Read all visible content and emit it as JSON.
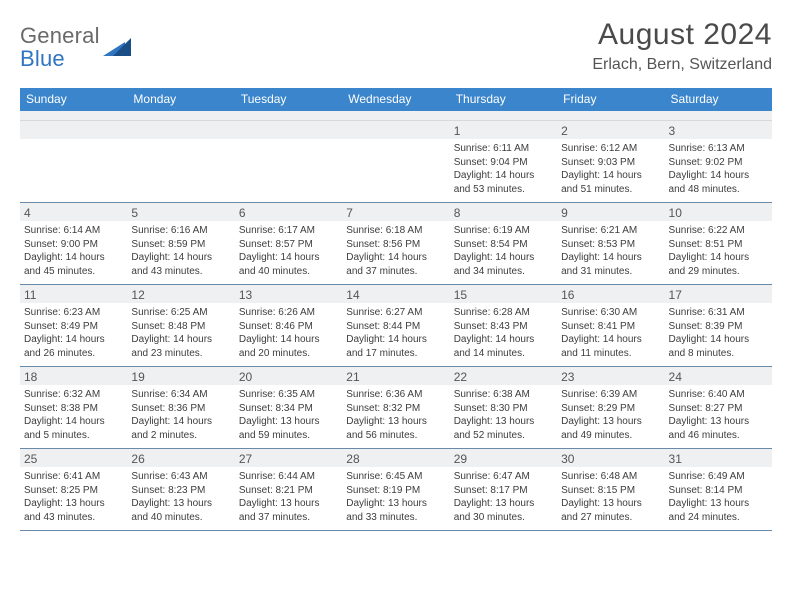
{
  "logo": {
    "part1": "General",
    "part2": "Blue"
  },
  "title": "August 2024",
  "location": "Erlach, Bern, Switzerland",
  "weekdays": [
    "Sunday",
    "Monday",
    "Tuesday",
    "Wednesday",
    "Thursday",
    "Friday",
    "Saturday"
  ],
  "colors": {
    "header_bg": "#3a85cc",
    "header_text": "#ffffff",
    "band_bg": "#eef0f1",
    "rule": "#6a8aaa",
    "body_text": "#3d3d3d",
    "title_text": "#4a4a4a",
    "logo_gray": "#6a6a6a",
    "logo_blue": "#2f75c1"
  },
  "typography": {
    "title_fontsize": 30,
    "location_fontsize": 16,
    "weekday_fontsize": 12,
    "daynum_fontsize": 12,
    "body_fontsize": 10
  },
  "weeks": [
    [
      {
        "num": "",
        "sunrise": "",
        "sunset": "",
        "daylight1": "",
        "daylight2": ""
      },
      {
        "num": "",
        "sunrise": "",
        "sunset": "",
        "daylight1": "",
        "daylight2": ""
      },
      {
        "num": "",
        "sunrise": "",
        "sunset": "",
        "daylight1": "",
        "daylight2": ""
      },
      {
        "num": "",
        "sunrise": "",
        "sunset": "",
        "daylight1": "",
        "daylight2": ""
      },
      {
        "num": "1",
        "sunrise": "Sunrise: 6:11 AM",
        "sunset": "Sunset: 9:04 PM",
        "daylight1": "Daylight: 14 hours",
        "daylight2": "and 53 minutes."
      },
      {
        "num": "2",
        "sunrise": "Sunrise: 6:12 AM",
        "sunset": "Sunset: 9:03 PM",
        "daylight1": "Daylight: 14 hours",
        "daylight2": "and 51 minutes."
      },
      {
        "num": "3",
        "sunrise": "Sunrise: 6:13 AM",
        "sunset": "Sunset: 9:02 PM",
        "daylight1": "Daylight: 14 hours",
        "daylight2": "and 48 minutes."
      }
    ],
    [
      {
        "num": "4",
        "sunrise": "Sunrise: 6:14 AM",
        "sunset": "Sunset: 9:00 PM",
        "daylight1": "Daylight: 14 hours",
        "daylight2": "and 45 minutes."
      },
      {
        "num": "5",
        "sunrise": "Sunrise: 6:16 AM",
        "sunset": "Sunset: 8:59 PM",
        "daylight1": "Daylight: 14 hours",
        "daylight2": "and 43 minutes."
      },
      {
        "num": "6",
        "sunrise": "Sunrise: 6:17 AM",
        "sunset": "Sunset: 8:57 PM",
        "daylight1": "Daylight: 14 hours",
        "daylight2": "and 40 minutes."
      },
      {
        "num": "7",
        "sunrise": "Sunrise: 6:18 AM",
        "sunset": "Sunset: 8:56 PM",
        "daylight1": "Daylight: 14 hours",
        "daylight2": "and 37 minutes."
      },
      {
        "num": "8",
        "sunrise": "Sunrise: 6:19 AM",
        "sunset": "Sunset: 8:54 PM",
        "daylight1": "Daylight: 14 hours",
        "daylight2": "and 34 minutes."
      },
      {
        "num": "9",
        "sunrise": "Sunrise: 6:21 AM",
        "sunset": "Sunset: 8:53 PM",
        "daylight1": "Daylight: 14 hours",
        "daylight2": "and 31 minutes."
      },
      {
        "num": "10",
        "sunrise": "Sunrise: 6:22 AM",
        "sunset": "Sunset: 8:51 PM",
        "daylight1": "Daylight: 14 hours",
        "daylight2": "and 29 minutes."
      }
    ],
    [
      {
        "num": "11",
        "sunrise": "Sunrise: 6:23 AM",
        "sunset": "Sunset: 8:49 PM",
        "daylight1": "Daylight: 14 hours",
        "daylight2": "and 26 minutes."
      },
      {
        "num": "12",
        "sunrise": "Sunrise: 6:25 AM",
        "sunset": "Sunset: 8:48 PM",
        "daylight1": "Daylight: 14 hours",
        "daylight2": "and 23 minutes."
      },
      {
        "num": "13",
        "sunrise": "Sunrise: 6:26 AM",
        "sunset": "Sunset: 8:46 PM",
        "daylight1": "Daylight: 14 hours",
        "daylight2": "and 20 minutes."
      },
      {
        "num": "14",
        "sunrise": "Sunrise: 6:27 AM",
        "sunset": "Sunset: 8:44 PM",
        "daylight1": "Daylight: 14 hours",
        "daylight2": "and 17 minutes."
      },
      {
        "num": "15",
        "sunrise": "Sunrise: 6:28 AM",
        "sunset": "Sunset: 8:43 PM",
        "daylight1": "Daylight: 14 hours",
        "daylight2": "and 14 minutes."
      },
      {
        "num": "16",
        "sunrise": "Sunrise: 6:30 AM",
        "sunset": "Sunset: 8:41 PM",
        "daylight1": "Daylight: 14 hours",
        "daylight2": "and 11 minutes."
      },
      {
        "num": "17",
        "sunrise": "Sunrise: 6:31 AM",
        "sunset": "Sunset: 8:39 PM",
        "daylight1": "Daylight: 14 hours",
        "daylight2": "and 8 minutes."
      }
    ],
    [
      {
        "num": "18",
        "sunrise": "Sunrise: 6:32 AM",
        "sunset": "Sunset: 8:38 PM",
        "daylight1": "Daylight: 14 hours",
        "daylight2": "and 5 minutes."
      },
      {
        "num": "19",
        "sunrise": "Sunrise: 6:34 AM",
        "sunset": "Sunset: 8:36 PM",
        "daylight1": "Daylight: 14 hours",
        "daylight2": "and 2 minutes."
      },
      {
        "num": "20",
        "sunrise": "Sunrise: 6:35 AM",
        "sunset": "Sunset: 8:34 PM",
        "daylight1": "Daylight: 13 hours",
        "daylight2": "and 59 minutes."
      },
      {
        "num": "21",
        "sunrise": "Sunrise: 6:36 AM",
        "sunset": "Sunset: 8:32 PM",
        "daylight1": "Daylight: 13 hours",
        "daylight2": "and 56 minutes."
      },
      {
        "num": "22",
        "sunrise": "Sunrise: 6:38 AM",
        "sunset": "Sunset: 8:30 PM",
        "daylight1": "Daylight: 13 hours",
        "daylight2": "and 52 minutes."
      },
      {
        "num": "23",
        "sunrise": "Sunrise: 6:39 AM",
        "sunset": "Sunset: 8:29 PM",
        "daylight1": "Daylight: 13 hours",
        "daylight2": "and 49 minutes."
      },
      {
        "num": "24",
        "sunrise": "Sunrise: 6:40 AM",
        "sunset": "Sunset: 8:27 PM",
        "daylight1": "Daylight: 13 hours",
        "daylight2": "and 46 minutes."
      }
    ],
    [
      {
        "num": "25",
        "sunrise": "Sunrise: 6:41 AM",
        "sunset": "Sunset: 8:25 PM",
        "daylight1": "Daylight: 13 hours",
        "daylight2": "and 43 minutes."
      },
      {
        "num": "26",
        "sunrise": "Sunrise: 6:43 AM",
        "sunset": "Sunset: 8:23 PM",
        "daylight1": "Daylight: 13 hours",
        "daylight2": "and 40 minutes."
      },
      {
        "num": "27",
        "sunrise": "Sunrise: 6:44 AM",
        "sunset": "Sunset: 8:21 PM",
        "daylight1": "Daylight: 13 hours",
        "daylight2": "and 37 minutes."
      },
      {
        "num": "28",
        "sunrise": "Sunrise: 6:45 AM",
        "sunset": "Sunset: 8:19 PM",
        "daylight1": "Daylight: 13 hours",
        "daylight2": "and 33 minutes."
      },
      {
        "num": "29",
        "sunrise": "Sunrise: 6:47 AM",
        "sunset": "Sunset: 8:17 PM",
        "daylight1": "Daylight: 13 hours",
        "daylight2": "and 30 minutes."
      },
      {
        "num": "30",
        "sunrise": "Sunrise: 6:48 AM",
        "sunset": "Sunset: 8:15 PM",
        "daylight1": "Daylight: 13 hours",
        "daylight2": "and 27 minutes."
      },
      {
        "num": "31",
        "sunrise": "Sunrise: 6:49 AM",
        "sunset": "Sunset: 8:14 PM",
        "daylight1": "Daylight: 13 hours",
        "daylight2": "and 24 minutes."
      }
    ]
  ]
}
